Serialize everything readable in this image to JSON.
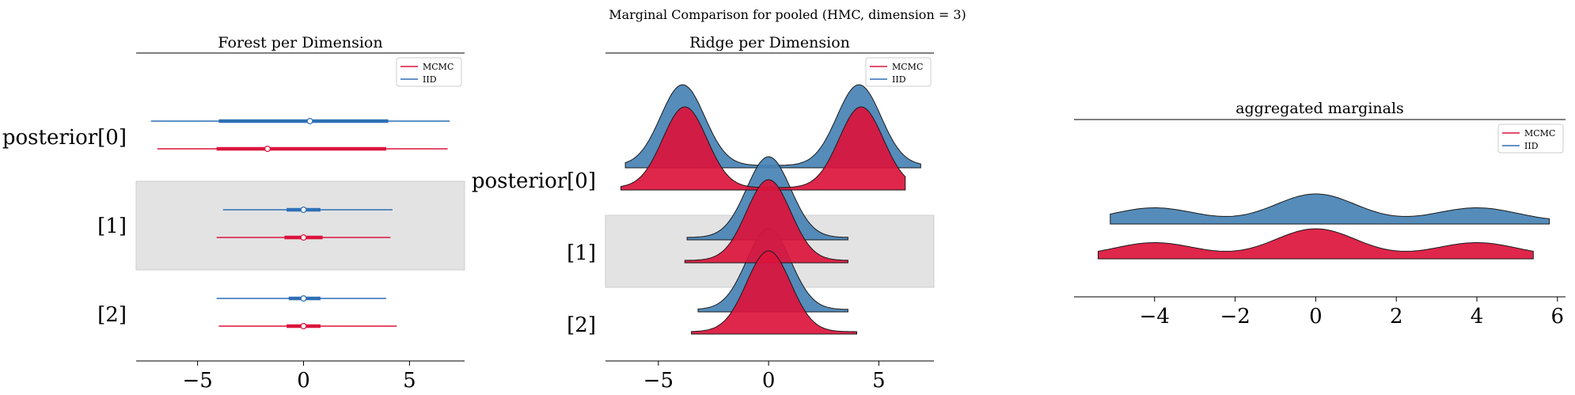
{
  "figure": {
    "suptitle": "Marginal Comparison for pooled (HMC, dimension = 3)"
  },
  "colors": {
    "mcmc": "#dc143c",
    "iid": "#4682b4",
    "iid_line": "#2f6fb5",
    "band": "#e3e3e3"
  },
  "chart_data": [
    {
      "type": "forest",
      "title": "Forest per Dimension",
      "rows": [
        "posterior[0]",
        "[1]",
        "[2]"
      ],
      "xlim": [
        -7.9,
        7.6
      ],
      "xticks": [
        -5,
        0,
        5
      ],
      "legend": {
        "position": "top-right",
        "entries": [
          "MCMC",
          "IID"
        ]
      },
      "shaded_rows": [
        1
      ],
      "series": [
        {
          "name": "IID",
          "color": "#2f6fb5",
          "rows": [
            {
              "hdi_low": -7.2,
              "hdi_high": 6.9,
              "iqr_low": -4.0,
              "iqr_high": 4.0,
              "median": 0.3
            },
            {
              "hdi_low": -3.8,
              "hdi_high": 4.2,
              "iqr_low": -0.8,
              "iqr_high": 0.8,
              "median": 0.0
            },
            {
              "hdi_low": -4.1,
              "hdi_high": 3.9,
              "iqr_low": -0.7,
              "iqr_high": 0.8,
              "median": 0.0
            }
          ]
        },
        {
          "name": "MCMC",
          "color": "#dc143c",
          "rows": [
            {
              "hdi_low": -6.9,
              "hdi_high": 6.8,
              "iqr_low": -4.1,
              "iqr_high": 3.9,
              "median": -1.7
            },
            {
              "hdi_low": -4.1,
              "hdi_high": 4.1,
              "iqr_low": -0.9,
              "iqr_high": 0.9,
              "median": 0.0
            },
            {
              "hdi_low": -4.0,
              "hdi_high": 4.4,
              "iqr_low": -0.8,
              "iqr_high": 0.8,
              "median": 0.0
            }
          ]
        }
      ]
    },
    {
      "type": "ridge",
      "title": "Ridge per Dimension",
      "rows": [
        "posterior[0]",
        "[1]",
        "[2]"
      ],
      "xlim": [
        -7.4,
        7.5
      ],
      "xticks": [
        -5,
        0,
        5
      ],
      "legend": {
        "position": "top-right",
        "entries": [
          "MCMC",
          "IID"
        ]
      },
      "shaded_rows": [
        1
      ],
      "series": [
        {
          "name": "IID",
          "color": "#4682b4",
          "rows": [
            {
              "range": [
                -6.5,
                6.9
              ],
              "components": [
                {
                  "mu": -3.9,
                  "sigma": 1.0,
                  "w": 0.5
                },
                {
                  "mu": 4.1,
                  "sigma": 1.0,
                  "w": 0.5
                }
              ]
            },
            {
              "range": [
                -3.7,
                3.6
              ],
              "components": [
                {
                  "mu": 0.0,
                  "sigma": 1.0,
                  "w": 1.0
                }
              ]
            },
            {
              "range": [
                -3.2,
                3.6
              ],
              "components": [
                {
                  "mu": 0.0,
                  "sigma": 1.0,
                  "w": 1.0
                }
              ]
            }
          ]
        },
        {
          "name": "MCMC",
          "color": "#dc143c",
          "rows": [
            {
              "range": [
                -6.7,
                6.2
              ],
              "components": [
                {
                  "mu": -3.8,
                  "sigma": 1.0,
                  "w": 0.5
                },
                {
                  "mu": 4.2,
                  "sigma": 1.0,
                  "w": 0.5
                }
              ]
            },
            {
              "range": [
                -3.8,
                3.6
              ],
              "components": [
                {
                  "mu": 0.0,
                  "sigma": 1.0,
                  "w": 1.0
                }
              ]
            },
            {
              "range": [
                -3.5,
                4.0
              ],
              "components": [
                {
                  "mu": 0.0,
                  "sigma": 1.0,
                  "w": 1.0
                }
              ]
            }
          ]
        }
      ]
    },
    {
      "type": "ridge",
      "title": "aggregated marginals",
      "rows": [
        ""
      ],
      "xlim": [
        -6.0,
        6.2
      ],
      "xticks": [
        -4,
        -2,
        0,
        2,
        4,
        6
      ],
      "legend": {
        "position": "top-right",
        "entries": [
          "MCMC",
          "IID"
        ]
      },
      "series": [
        {
          "name": "IID",
          "color": "#4682b4",
          "rows": [
            {
              "range": [
                -5.1,
                5.8
              ],
              "components": [
                {
                  "mu": -4.0,
                  "sigma": 1.0,
                  "w": 0.25
                },
                {
                  "mu": 0.0,
                  "sigma": 1.0,
                  "w": 0.5
                },
                {
                  "mu": 4.0,
                  "sigma": 1.0,
                  "w": 0.25
                }
              ]
            }
          ]
        },
        {
          "name": "MCMC",
          "color": "#dc143c",
          "rows": [
            {
              "range": [
                -5.4,
                5.4
              ],
              "components": [
                {
                  "mu": -4.0,
                  "sigma": 1.0,
                  "w": 0.25
                },
                {
                  "mu": 0.0,
                  "sigma": 1.0,
                  "w": 0.5
                },
                {
                  "mu": 4.0,
                  "sigma": 1.0,
                  "w": 0.25
                }
              ]
            }
          ]
        }
      ]
    }
  ]
}
